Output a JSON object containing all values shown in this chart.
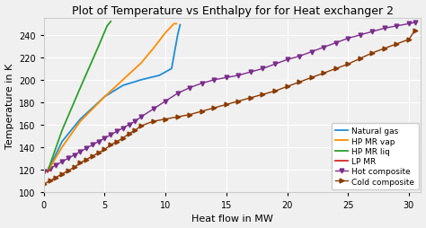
{
  "title": "Plot of Temperature vs Enthalpy for for Heat exchanger 2",
  "xlabel": "Heat flow in MW",
  "ylabel": "Temperature in K",
  "xlim": [
    0,
    31
  ],
  "ylim": [
    100,
    255
  ],
  "yticks": [
    100,
    120,
    140,
    160,
    180,
    200,
    220,
    240
  ],
  "xticks": [
    0,
    5,
    10,
    15,
    20,
    25,
    30
  ],
  "natural_gas": {
    "x": [
      0.3,
      1.5,
      3.0,
      5.0,
      6.5,
      8.0,
      9.5,
      10.5,
      11.0,
      11.2
    ],
    "y": [
      118,
      145,
      165,
      185,
      195,
      200,
      204,
      210,
      240,
      249
    ],
    "color": "#1f8dd6",
    "label": "Natural gas"
  },
  "hp_mr_vap": {
    "x": [
      0.3,
      1.5,
      3.0,
      5.0,
      6.5,
      8.0,
      9.0,
      10.0,
      10.7,
      10.9
    ],
    "y": [
      118,
      140,
      163,
      185,
      200,
      215,
      228,
      242,
      250,
      250
    ],
    "color": "#ff8c00",
    "label": "HP MR vap"
  },
  "hp_mr_liq": {
    "x": [
      0.3,
      1.5,
      3.0,
      4.5,
      5.2,
      5.5
    ],
    "y": [
      118,
      155,
      193,
      230,
      248,
      252
    ],
    "color": "#2ca02c",
    "label": "HP MR liq"
  },
  "lp_mr": {
    "x": [
      0.3,
      0.5
    ],
    "y": [
      118,
      120
    ],
    "color": "#d62728",
    "label": "LP MR"
  },
  "hot_composite": {
    "x": [
      0.0,
      0.5,
      1.0,
      1.5,
      2.0,
      2.5,
      3.0,
      3.5,
      4.0,
      4.5,
      5.0,
      5.5,
      6.0,
      6.5,
      7.0,
      7.5,
      8.0,
      9.0,
      10.0,
      11.0,
      12.0,
      13.0,
      14.0,
      15.0,
      16.0,
      17.0,
      18.0,
      19.0,
      20.0,
      21.0,
      22.0,
      23.0,
      24.0,
      25.0,
      26.0,
      27.0,
      28.0,
      29.0,
      30.0,
      30.5
    ],
    "y": [
      118,
      121,
      124,
      127,
      130,
      133,
      136,
      139,
      142,
      145,
      148,
      151,
      154,
      157,
      160,
      163,
      167,
      174,
      181,
      188,
      193,
      197,
      200,
      202,
      204,
      207,
      210,
      214,
      218,
      221,
      225,
      229,
      233,
      237,
      240,
      243,
      246,
      248,
      250,
      251
    ],
    "color": "#7b2d8b",
    "label": "Hot composite",
    "marker": "v"
  },
  "cold_composite": {
    "x": [
      0.0,
      0.5,
      1.0,
      1.5,
      2.0,
      2.5,
      3.0,
      3.5,
      4.0,
      4.5,
      5.0,
      5.5,
      6.0,
      6.5,
      7.0,
      7.5,
      8.0,
      9.0,
      10.0,
      11.0,
      12.0,
      13.0,
      14.0,
      15.0,
      16.0,
      17.0,
      18.0,
      19.0,
      20.0,
      21.0,
      22.0,
      23.0,
      24.0,
      25.0,
      26.0,
      27.0,
      28.0,
      29.0,
      30.0,
      30.5
    ],
    "y": [
      107,
      110,
      113,
      116,
      119,
      122,
      126,
      129,
      132,
      135,
      138,
      142,
      145,
      148,
      152,
      155,
      159,
      163,
      165,
      167,
      169,
      172,
      175,
      178,
      181,
      184,
      187,
      190,
      194,
      198,
      202,
      206,
      210,
      214,
      219,
      224,
      228,
      232,
      236,
      244
    ],
    "color": "#8b3a00",
    "label": "Cold composite",
    "marker": ">"
  },
  "background_color": "#f0f0f0",
  "grid_color": "white",
  "title_fontsize": 9,
  "label_fontsize": 8,
  "tick_fontsize": 7,
  "legend_fontsize": 6.5
}
